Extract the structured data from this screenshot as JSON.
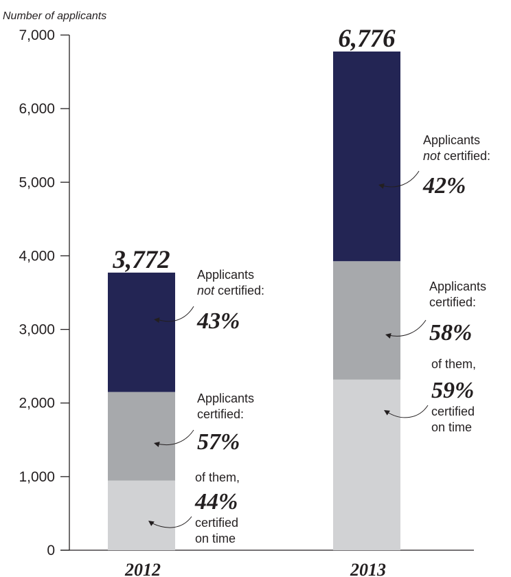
{
  "chart_data": {
    "type": "bar",
    "stacked": true,
    "ylabel": "Number of applicants",
    "ylim": [
      0,
      7000
    ],
    "yticks": [
      0,
      1000,
      2000,
      3000,
      4000,
      5000,
      6000,
      7000
    ],
    "ytick_labels": [
      "0",
      "1,000",
      "2,000",
      "3,000",
      "4,000",
      "5,000",
      "6,000",
      "7,000"
    ],
    "categories": [
      "2012",
      "2013"
    ],
    "totals": [
      3772,
      6776
    ],
    "total_labels": [
      "3,772",
      "6,776"
    ],
    "series": [
      {
        "color": "#d1d2d4",
        "values": [
          946,
          2318
        ]
      },
      {
        "color": "#a7a9ac",
        "values": [
          1204,
          1609
        ]
      },
      {
        "color": "#232554",
        "values": [
          1622,
          2849
        ]
      }
    ],
    "annotations": [
      {
        "not_certified": {
          "line1": "Applicants",
          "line2_it": "not",
          "line2": " certified:",
          "pct": "43%"
        },
        "certified": {
          "line1": "Applicants",
          "line2": "certified:",
          "pct": "57%"
        },
        "on_time": {
          "line1": "of them,",
          "pct": "44%",
          "line2": "certified",
          "line3": "on time"
        }
      },
      {
        "not_certified": {
          "line1": "Applicants",
          "line2_it": "not",
          "line2": " certified:",
          "pct": "42%"
        },
        "certified": {
          "line1": "Applicants",
          "line2": "certified:",
          "pct": "58%"
        },
        "on_time": {
          "line1": "of them,",
          "pct": "59%",
          "line2": "certified",
          "line3": "on time"
        }
      }
    ]
  }
}
